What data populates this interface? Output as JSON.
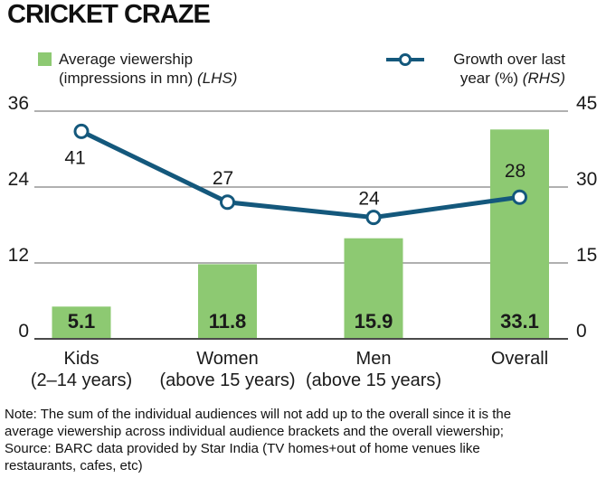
{
  "title": "CRICKET CRAZE",
  "legend": {
    "bar": {
      "line1": "Average viewership",
      "line2": "(impressions in mn)",
      "suffix": "(LHS)"
    },
    "line": {
      "line1": "Growth over last",
      "line2": "year (%)",
      "suffix": "(RHS)"
    }
  },
  "chart_data": {
    "type": "bar",
    "subtype": "bar+line combo, dual axis",
    "categories": [
      {
        "label": "Kids",
        "sub": "(2–14 years)"
      },
      {
        "label": "Women",
        "sub": "(above 15 years)"
      },
      {
        "label": "Men",
        "sub": "(above 15 years)"
      },
      {
        "label": "Overall",
        "sub": ""
      }
    ],
    "series": [
      {
        "name": "Average viewership (impressions in mn)",
        "type": "bar",
        "axis": "LHS",
        "values": [
          5.1,
          11.8,
          15.9,
          33.1
        ]
      },
      {
        "name": "Growth over last year (%)",
        "type": "line",
        "axis": "RHS",
        "values": [
          41,
          27,
          24,
          28
        ]
      }
    ],
    "left_axis": {
      "ticks": [
        36,
        24,
        12,
        0
      ],
      "min": 0,
      "max": 36
    },
    "right_axis": {
      "ticks": [
        45,
        30,
        15,
        0
      ],
      "min": 0,
      "max": 45
    },
    "grid": true,
    "legend_position": "top",
    "colors": {
      "bar": "#8dc972",
      "line": "#14587c",
      "marker_fill": "#ffffff",
      "grid": "#808080",
      "baseline": "#4a4a4a",
      "text": "#1a1a1a"
    }
  },
  "footer": {
    "lines": [
      "Note: The sum of the individual audiences will not add up to the overall since it is the",
      "average viewership across individual audience brackets and the overall viewership;",
      "Source: BARC data provided by Star India (TV homes+out of home venues like",
      "restaurants, cafes, etc)"
    ]
  }
}
